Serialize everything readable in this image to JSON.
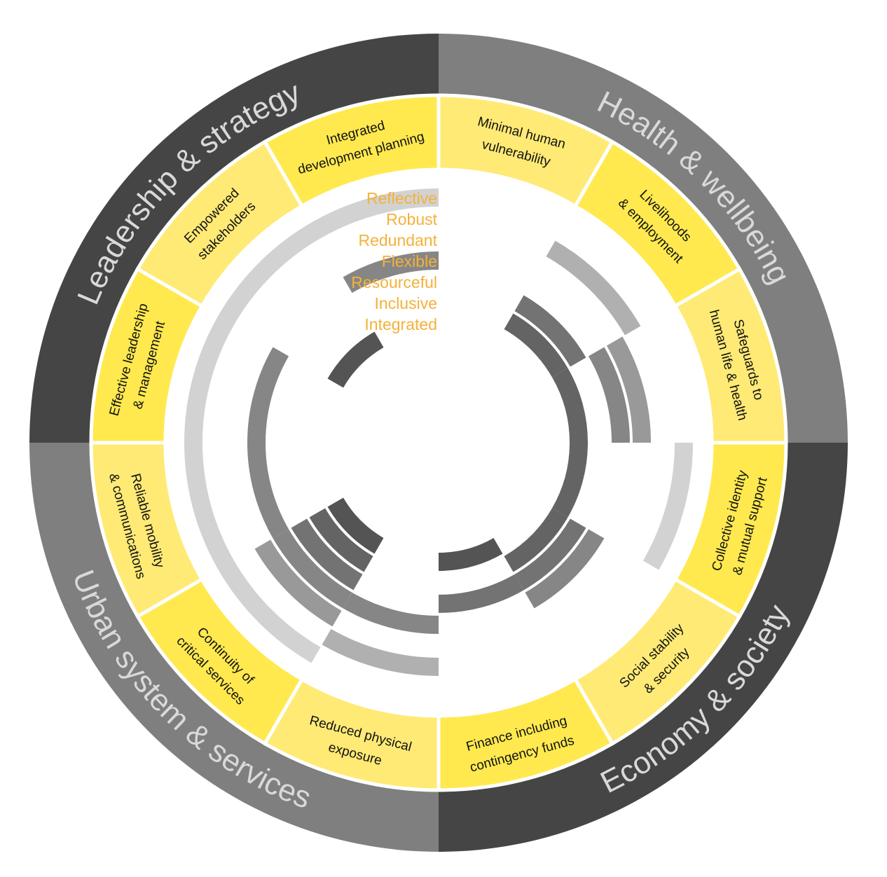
{
  "colors": {
    "band_dark": "#454545",
    "band_mid": "#7f7f7f",
    "band_text": "#d9d9d9",
    "goal_yellow_light": "#ffea75",
    "goal_yellow": "#ffe94f",
    "quality_text": "#f4b13a"
  },
  "dimensions": [
    {
      "name": "Leadership & strategy",
      "color": "#454545"
    },
    {
      "name": "Health & wellbeing",
      "color": "#7f7f7f"
    },
    {
      "name": "Economy & society",
      "color": "#454545"
    },
    {
      "name": "Urban system & services",
      "color": "#7f7f7f"
    }
  ],
  "goals": [
    {
      "lines": [
        "Minimal human",
        "vulnerability"
      ],
      "color": "#ffea75"
    },
    {
      "lines": [
        "Livelihoods",
        "& employment"
      ],
      "color": "#ffe94f"
    },
    {
      "lines": [
        "Safeguards to",
        "human life & health"
      ],
      "color": "#ffea75"
    },
    {
      "lines": [
        "Collective identity",
        "& mutual support"
      ],
      "color": "#ffe94f"
    },
    {
      "lines": [
        "Social stability",
        "& security"
      ],
      "color": "#ffea75"
    },
    {
      "lines": [
        "Finance including",
        "contingency funds"
      ],
      "color": "#ffe94f"
    },
    {
      "lines": [
        "Reduced physical",
        "exposure"
      ],
      "color": "#ffea75"
    },
    {
      "lines": [
        "Continuity of",
        "critical services"
      ],
      "color": "#ffe94f"
    },
    {
      "lines": [
        "Reliable mobility",
        "& communications"
      ],
      "color": "#ffea75"
    },
    {
      "lines": [
        "Effective leadership",
        "& management"
      ],
      "color": "#ffe94f"
    },
    {
      "lines": [
        "Empowered",
        "stakeholders"
      ],
      "color": "#ffea75"
    },
    {
      "lines": [
        "Integrated",
        "development planning"
      ],
      "color": "#ffe94f"
    }
  ],
  "qualities": [
    {
      "name": "Reflective",
      "color": "#d2d2d2",
      "goals": [
        3,
        7,
        8,
        9,
        10,
        11
      ]
    },
    {
      "name": "Robust",
      "color": "#b0b0b0",
      "goals": [
        1,
        6
      ]
    },
    {
      "name": "Redundant",
      "color": "#999999",
      "goals": [
        2,
        7
      ]
    },
    {
      "name": "Flexible",
      "color": "#868686",
      "goals": [
        2,
        4,
        6,
        7,
        8,
        9,
        11
      ]
    },
    {
      "name": "Resourceful",
      "color": "#737373",
      "goals": [
        1,
        4,
        5,
        7
      ]
    },
    {
      "name": "Inclusive",
      "color": "#646464",
      "goals": [
        1,
        2,
        3,
        4,
        7
      ]
    },
    {
      "name": "Integrated",
      "color": "#545454",
      "goals": [
        5,
        7,
        10
      ]
    }
  ]
}
